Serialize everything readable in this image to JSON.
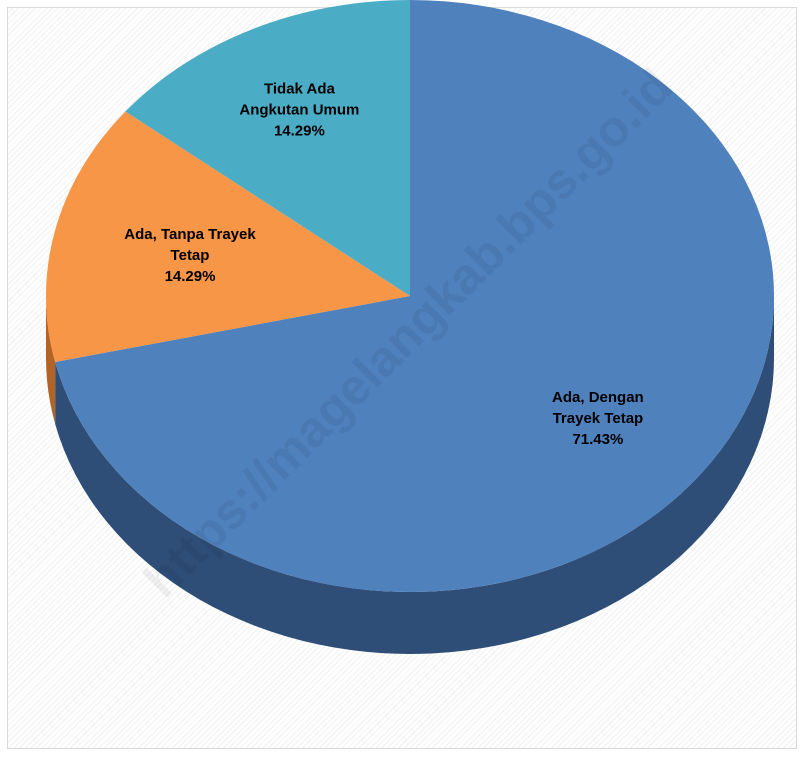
{
  "chart_data": {
    "type": "pie",
    "title": "",
    "categories": [
      "Ada, Dengan Trayek Tetap",
      "Ada, Tanpa Trayek Tetap",
      "Tidak Ada Angkutan Umum"
    ],
    "values": [
      71.43,
      14.29,
      14.29
    ],
    "value_labels": [
      "71.43%",
      "14.29%",
      "14.29%"
    ],
    "label_lines": [
      [
        "Ada, Dengan",
        "Trayek Tetap",
        "71.43%"
      ],
      [
        "Ada, Tanpa Trayek",
        "Tetap",
        "14.29%"
      ],
      [
        "Tidak Ada",
        "Angkutan Umum",
        "14.29%"
      ]
    ],
    "colors": [
      "#4f81bd",
      "#f79646",
      "#4bacc6"
    ],
    "side_colors": [
      "#2e4e78",
      "#b26326",
      "#2f7d93"
    ],
    "legend": "none",
    "style": "3d"
  },
  "watermark": "https://magelangkab.bps.go.id"
}
